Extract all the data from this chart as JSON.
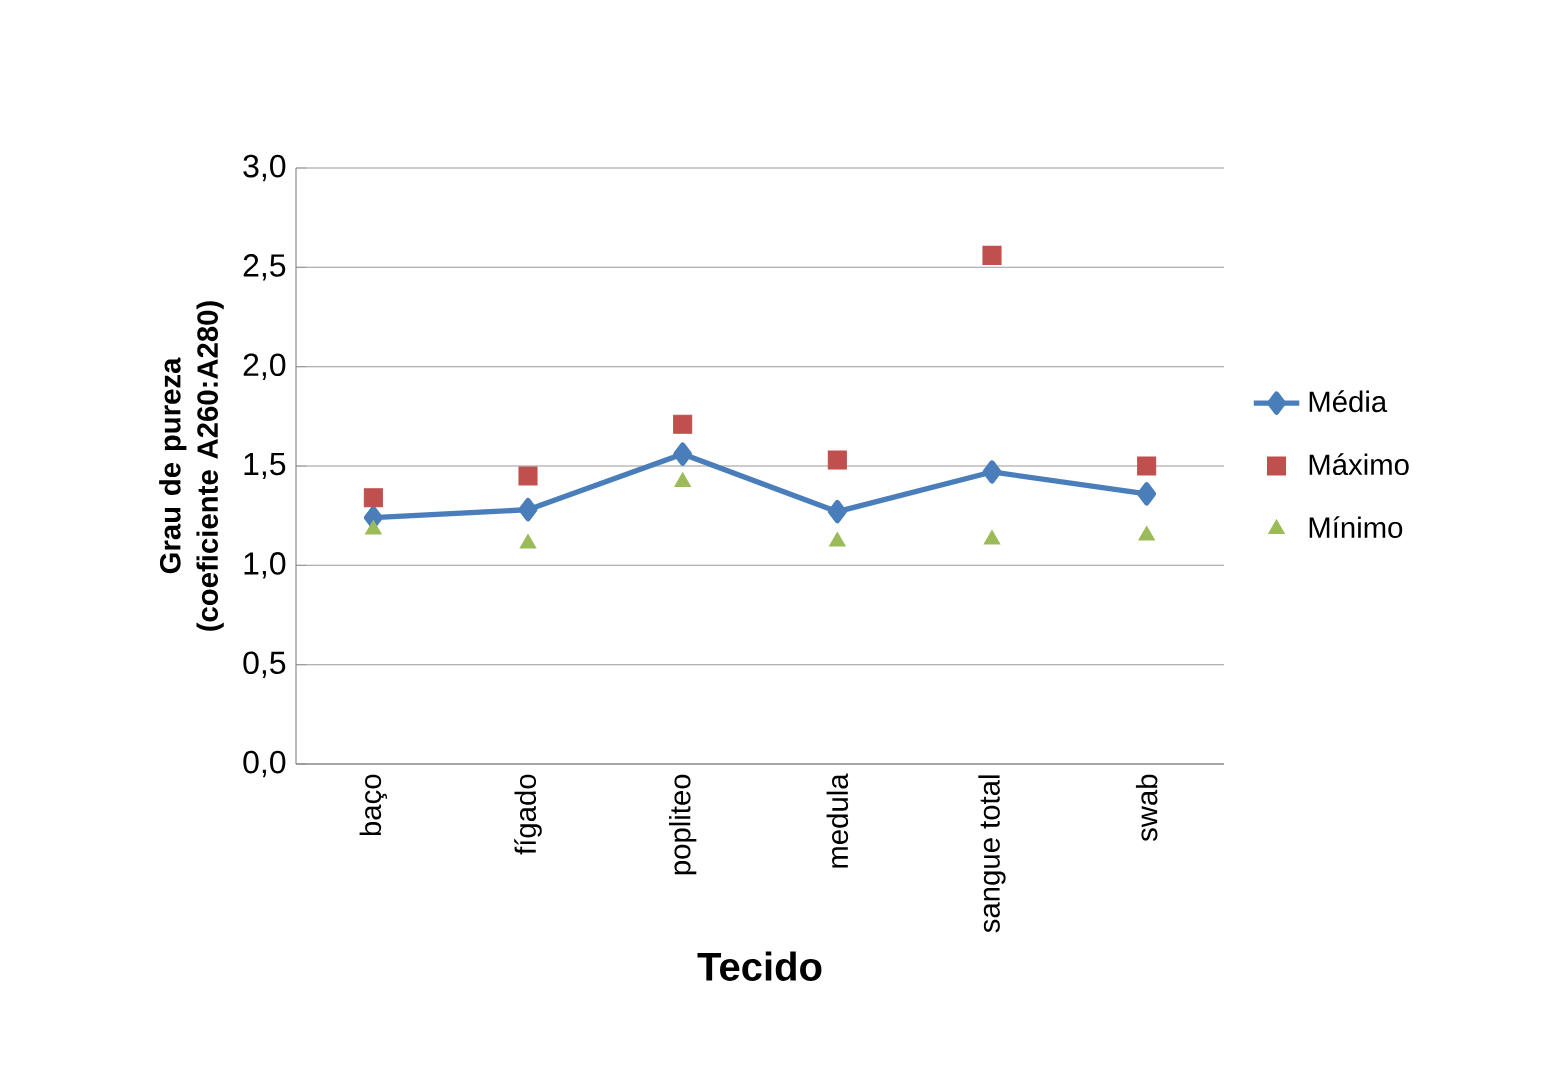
{
  "chart_data": {
    "type": "line",
    "xlabel": "Tecido",
    "ylabel": "Grau de pureza (coeficiente A260:A280)",
    "categories": [
      "baço",
      "fígado",
      "popliteo",
      "medula",
      "sangue total",
      "swab"
    ],
    "series": [
      {
        "name": "Média",
        "marker": "diamond",
        "color": "#4a7ebb",
        "values": [
          1.24,
          1.28,
          1.56,
          1.27,
          1.47,
          1.36
        ]
      },
      {
        "name": "Máximo",
        "type": "scatter",
        "marker": "square",
        "color": "#c0504d",
        "values": [
          1.34,
          1.45,
          1.71,
          1.53,
          2.56,
          1.5
        ]
      },
      {
        "name": "Mínimo",
        "type": "scatter",
        "marker": "triangle",
        "color": "#9bbb59",
        "values": [
          1.18,
          1.11,
          1.42,
          1.12,
          1.13,
          1.15
        ]
      }
    ],
    "ylim": [
      0,
      3
    ],
    "yticks": [
      {
        "value": 0,
        "label": "0,0"
      },
      {
        "value": 0.5,
        "label": "0,5"
      },
      {
        "value": 1,
        "label": "1,0"
      },
      {
        "value": 1.5,
        "label": "1,5"
      },
      {
        "value": 2,
        "label": "2,0"
      },
      {
        "value": 2.5,
        "label": "2,5"
      },
      {
        "value": 3,
        "label": "3,0"
      }
    ],
    "grid": "y",
    "legend": "right"
  }
}
